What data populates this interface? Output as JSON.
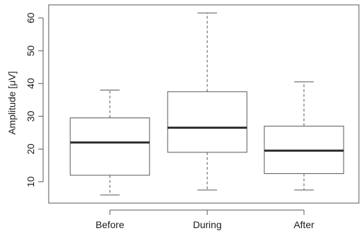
{
  "chart_data": {
    "type": "box",
    "categories": [
      "Before",
      "During",
      "After"
    ],
    "boxes": [
      {
        "name": "Before",
        "min": 6,
        "q1": 12,
        "median": 22,
        "q3": 29.5,
        "max": 38
      },
      {
        "name": "During",
        "min": 7.5,
        "q1": 19,
        "median": 26.5,
        "q3": 37.5,
        "max": 61.5
      },
      {
        "name": "After",
        "min": 7.5,
        "q1": 12.5,
        "median": 19.5,
        "q3": 27,
        "max": 40.5
      }
    ],
    "title": "",
    "xlabel": "",
    "ylabel": "Amplitude [μV]",
    "yticks": [
      10,
      20,
      30,
      40,
      50,
      60
    ],
    "ylim": [
      3.5,
      64
    ],
    "grid": false,
    "colors": {
      "box_fill": "#ffffff",
      "stroke": "#555555",
      "median": "#2b2b2b",
      "text": "#1a1a1a"
    }
  }
}
